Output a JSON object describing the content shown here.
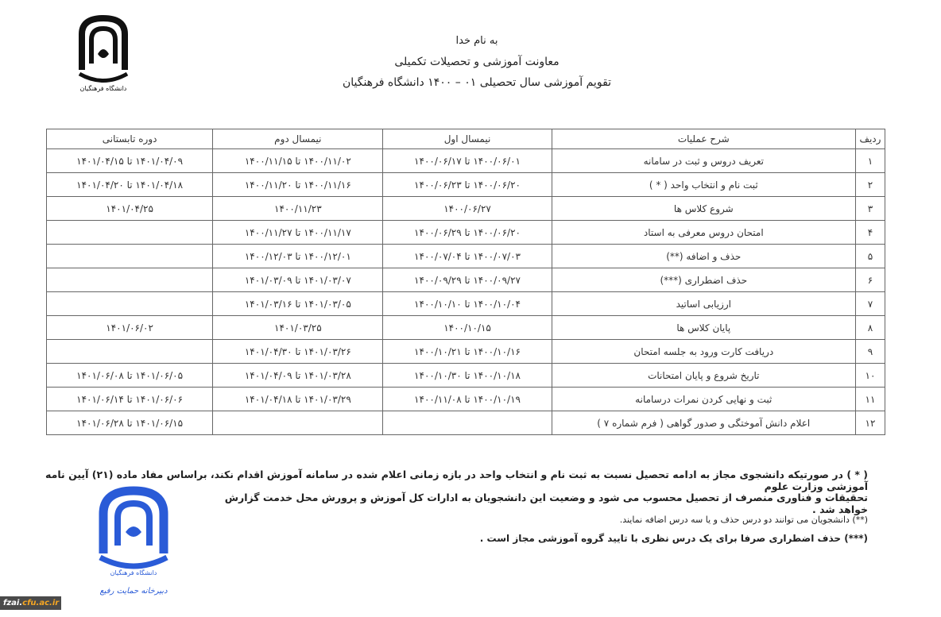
{
  "header": {
    "line1": "به نام خدا",
    "line2": "معاونت آموزشی و تحصیلات تکمیلی",
    "line3": "تقویم آموزشی سال تحصیلی ۰۱ – ۱۴۰۰ دانشگاه فرهنگیان"
  },
  "logo_text": "دانشگاه فرهنگیان",
  "table": {
    "headers": [
      "ردیف",
      "شرح عملیات",
      "نیمسال اول",
      "نیمسال دوم",
      "دوره تابستانی"
    ],
    "rows": [
      [
        "۱",
        "تعریف دروس و ثبت در سامانه",
        "۱۴۰۰/۰۶/۰۱ تا ۱۴۰۰/۰۶/۱۷",
        "۱۴۰۰/۱۱/۰۲ تا ۱۴۰۰/۱۱/۱۵",
        "۱۴۰۱/۰۴/۰۹ تا ۱۴۰۱/۰۴/۱۵"
      ],
      [
        "۲",
        "ثبت نام و انتخاب واحد ( * )",
        "۱۴۰۰/۰۶/۲۰ تا ۱۴۰۰/۰۶/۲۳",
        "۱۴۰۰/۱۱/۱۶ تا ۱۴۰۰/۱۱/۲۰",
        "۱۴۰۱/۰۴/۱۸ تا ۱۴۰۱/۰۴/۲۰"
      ],
      [
        "۳",
        "شروع کلاس ها",
        "۱۴۰۰/۰۶/۲۷",
        "۱۴۰۰/۱۱/۲۳",
        "۱۴۰۱/۰۴/۲۵"
      ],
      [
        "۴",
        "امتحان دروس معرفی به استاد",
        "۱۴۰۰/۰۶/۲۰ تا ۱۴۰۰/۰۶/۲۹",
        "۱۴۰۰/۱۱/۱۷ تا ۱۴۰۰/۱۱/۲۷",
        ""
      ],
      [
        "۵",
        "حذف و اضافه (**)",
        "۱۴۰۰/۰۷/۰۳ تا ۱۴۰۰/۰۷/۰۴",
        "۱۴۰۰/۱۲/۰۱ تا ۱۴۰۰/۱۲/۰۳",
        ""
      ],
      [
        "۶",
        "حذف اضطراری (***)",
        "۱۴۰۰/۰۹/۲۷ تا ۱۴۰۰/۰۹/۲۹",
        "۱۴۰۱/۰۳/۰۷ تا ۱۴۰۱/۰۳/۰۹",
        ""
      ],
      [
        "۷",
        "ارزیابی اساتید",
        "۱۴۰۰/۱۰/۰۴ تا ۱۴۰۰/۱۰/۱۰",
        "۱۴۰۱/۰۳/۰۵ تا ۱۴۰۱/۰۳/۱۶",
        ""
      ],
      [
        "۸",
        "پایان کلاس ها",
        "۱۴۰۰/۱۰/۱۵",
        "۱۴۰۱/۰۳/۲۵",
        "۱۴۰۱/۰۶/۰۲"
      ],
      [
        "۹",
        "دریافت کارت ورود به جلسه امتحان",
        "۱۴۰۰/۱۰/۱۶ تا ۱۴۰۰/۱۰/۲۱",
        "۱۴۰۱/۰۳/۲۶ تا ۱۴۰۱/۰۴/۳۰",
        ""
      ],
      [
        "۱۰",
        "تاریخ شروع و پایان امتحانات",
        "۱۴۰۰/۱۰/۱۸ تا ۱۴۰۰/۱۰/۳۰",
        "۱۴۰۱/۰۳/۲۸ تا ۱۴۰۱/۰۴/۰۹",
        "۱۴۰۱/۰۶/۰۵ تا ۱۴۰۱/۰۶/۰۸"
      ],
      [
        "۱۱",
        "ثبت و نهایی کردن نمرات درسامانه",
        "۱۴۰۰/۱۰/۱۹ تا ۱۴۰۰/۱۱/۰۸",
        "۱۴۰۱/۰۳/۲۹ تا ۱۴۰۱/۰۴/۱۸",
        "۱۴۰۱/۰۶/۰۶ تا ۱۴۰۱/۰۶/۱۴"
      ],
      [
        "۱۲",
        "اعلام دانش آموختگی و صدور گواهی ( فرم شماره ۷ )",
        "",
        "",
        "۱۴۰۱/۰۶/۱۵ تا ۱۴۰۱/۰۶/۲۸"
      ]
    ]
  },
  "notes": {
    "n1": "( * ) در صورتیکه دانشجوی مجاز به ادامه تحصیل نسبت به ثبت نام و انتخاب واحد در بازه زمانی اعلام شده در سامانه آموزش اقدام نکند، براساس مفاد ماده (۲۱) آیین نامه آموزشی وزارت علوم",
    "n2": "تحقیقات و فناوری منصرف از تحصیل محسوب می شود و وضعیت این دانشجویان به ادارات کل آموزش و پرورش محل خدمت گزارش خواهد شد .",
    "n3": "(**) دانشجویان می توانند دو درس حذف و یا سه درس اضافه نمایند.",
    "n4": "(***) حذف اضطراری صرفا برای یک درس نظری با تایید گروه آموزشی مجاز است ."
  },
  "signature_text": "دبیرخانه حمایت رفیع",
  "watermark": {
    "part1": "fzai.",
    "part2": "cfu.ac.ir"
  },
  "colors": {
    "logo_top": "#111111",
    "logo_bottom": "#2a5bd7",
    "watermark_bg": "#4a4a4a",
    "watermark_accent": "#f5a623"
  }
}
